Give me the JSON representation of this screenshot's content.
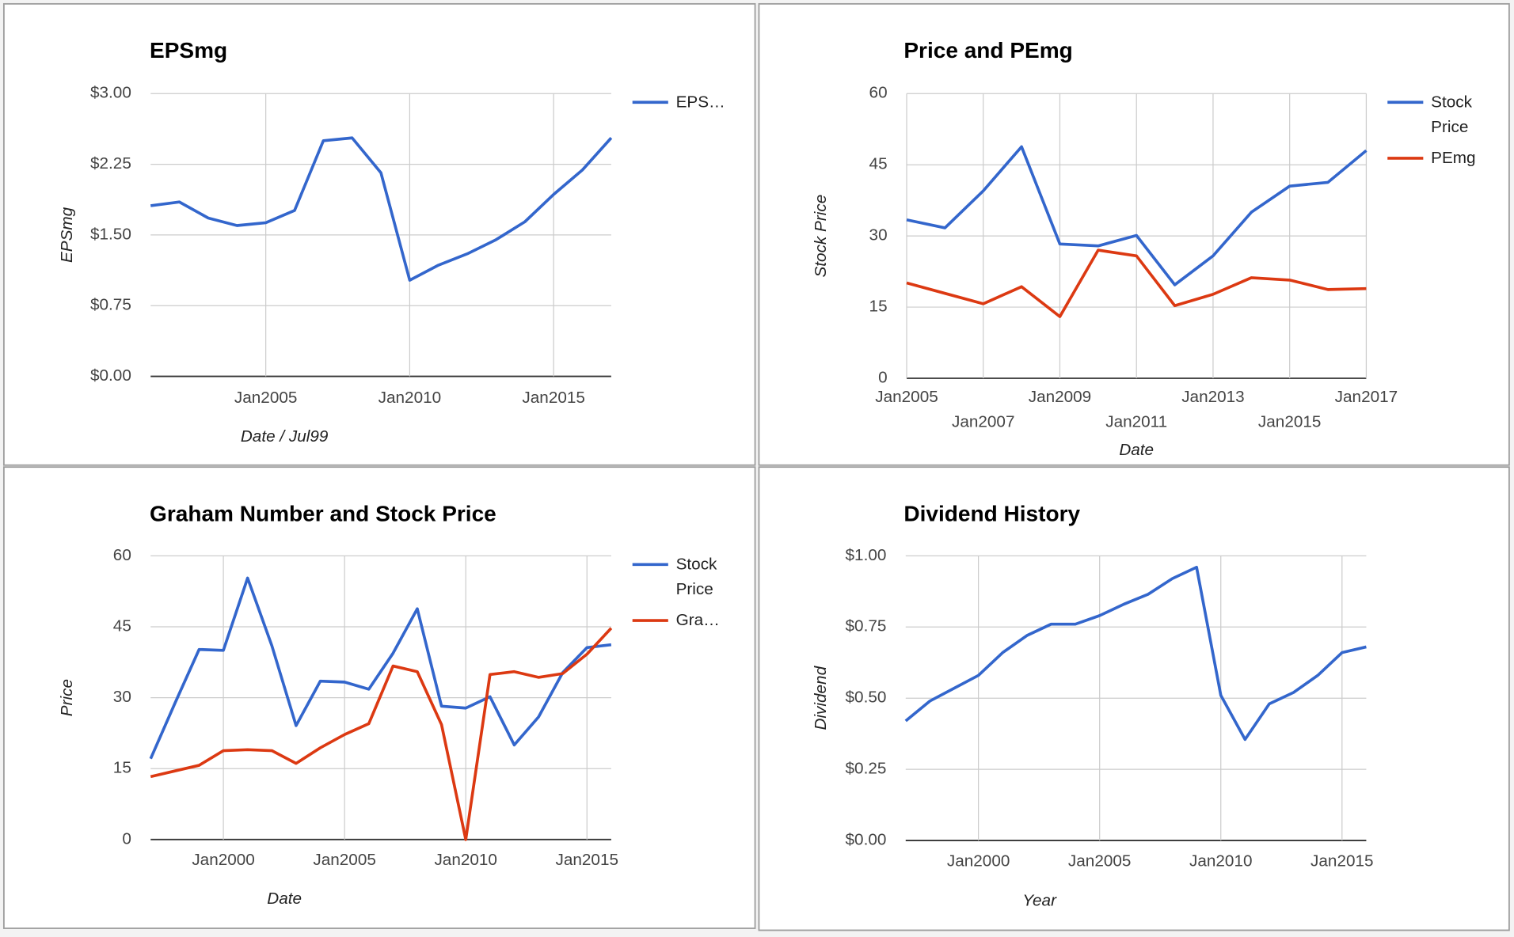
{
  "chart_data": [
    {
      "type": "line",
      "title": "EPSmg",
      "x_label": "Date / Jul99",
      "y_label": "EPSmg",
      "x": [
        2001,
        2002,
        2003,
        2004,
        2005,
        2006,
        2007,
        2008,
        2009,
        2010,
        2011,
        2012,
        2013,
        2014,
        2015,
        2016,
        2017
      ],
      "series": [
        {
          "name": "EPS…",
          "color": "#3366cc",
          "values": [
            1.81,
            1.85,
            1.68,
            1.6,
            1.63,
            1.76,
            2.5,
            2.53,
            2.16,
            1.02,
            1.18,
            1.3,
            1.45,
            1.64,
            1.93,
            2.19,
            2.53
          ]
        }
      ],
      "xlim": [
        2001,
        2017
      ],
      "xticks": [
        {
          "value": 2005,
          "label": "Jan2005"
        },
        {
          "value": 2010,
          "label": "Jan2010"
        },
        {
          "value": 2015,
          "label": "Jan2015"
        }
      ],
      "ylim": [
        0,
        3
      ],
      "yticks": [
        {
          "value": 0,
          "label": "$0.00"
        },
        {
          "value": 0.75,
          "label": "$0.75"
        },
        {
          "value": 1.5,
          "label": "$1.50"
        },
        {
          "value": 2.25,
          "label": "$2.25"
        },
        {
          "value": 3,
          "label": "$3.00"
        }
      ],
      "grid": true,
      "legend": "right"
    },
    {
      "type": "line",
      "title": "Price and PEmg",
      "x_label": "Date",
      "y_label": "Stock Price",
      "x": [
        2005,
        2006,
        2007,
        2008,
        2009,
        2010,
        2011,
        2012,
        2013,
        2014,
        2015,
        2016,
        2017
      ],
      "series": [
        {
          "name": "Stock Price",
          "color": "#3366cc",
          "values": [
            33.4,
            31.7,
            39.5,
            48.8,
            28.3,
            27.9,
            30.1,
            19.7,
            25.8,
            35.0,
            40.5,
            41.3,
            48.0
          ]
        },
        {
          "name": "PEmg",
          "color": "#dc3912",
          "values": [
            20.1,
            17.9,
            15.7,
            19.3,
            13.0,
            27.0,
            25.8,
            15.3,
            17.7,
            21.2,
            20.7,
            18.7,
            18.9
          ]
        }
      ],
      "xlim": [
        2005,
        2017
      ],
      "xticks": [
        {
          "value": 2005,
          "label": "Jan2005"
        },
        {
          "value": 2007,
          "label": "Jan2007"
        },
        {
          "value": 2009,
          "label": "Jan2009"
        },
        {
          "value": 2011,
          "label": "Jan2011"
        },
        {
          "value": 2013,
          "label": "Jan2013"
        },
        {
          "value": 2015,
          "label": "Jan2015"
        },
        {
          "value": 2017,
          "label": "Jan2017"
        }
      ],
      "ylim": [
        0,
        60
      ],
      "yticks": [
        0,
        15,
        30,
        45,
        60
      ],
      "grid": true,
      "legend": "right"
    },
    {
      "type": "line",
      "title": "Graham Number and Stock Price",
      "x_label": "Date",
      "y_label": "Price",
      "x": [
        1997,
        1998,
        1999,
        2000,
        2001,
        2002,
        2003,
        2004,
        2005,
        2006,
        2007,
        2008,
        2009,
        2010,
        2011,
        2012,
        2013,
        2014,
        2015,
        2016
      ],
      "series": [
        {
          "name": "Stock Price",
          "color": "#3366cc",
          "values": [
            17.1,
            28.8,
            40.2,
            40.0,
            55.3,
            41.0,
            24.1,
            33.5,
            33.3,
            31.8,
            39.4,
            48.8,
            28.2,
            27.8,
            30.2,
            20.0,
            25.9,
            35.3,
            40.6,
            41.2
          ]
        },
        {
          "name": "Gra…",
          "color": "#dc3912",
          "values": [
            13.3,
            14.5,
            15.7,
            18.8,
            19.0,
            18.8,
            16.1,
            19.4,
            22.2,
            24.5,
            36.7,
            35.5,
            24.3,
            0,
            34.9,
            35.5,
            34.3,
            35.1,
            39.2,
            44.7
          ]
        }
      ],
      "xlim": [
        1997,
        2016
      ],
      "xticks": [
        {
          "value": 2000,
          "label": "Jan2000"
        },
        {
          "value": 2005,
          "label": "Jan2005"
        },
        {
          "value": 2010,
          "label": "Jan2010"
        },
        {
          "value": 2015,
          "label": "Jan2015"
        }
      ],
      "ylim": [
        0,
        60
      ],
      "yticks": [
        0,
        15,
        30,
        45,
        60
      ],
      "grid": true,
      "legend": "right"
    },
    {
      "type": "line",
      "title": "Dividend History",
      "x_label": "Year",
      "y_label": "Dividend",
      "x": [
        1997,
        1998,
        1999,
        2000,
        2001,
        2002,
        2003,
        2004,
        2005,
        2006,
        2007,
        2008,
        2009,
        2010,
        2011,
        2012,
        2013,
        2014,
        2015,
        2016
      ],
      "series": [
        {
          "color": "#3366cc",
          "values": [
            0.42,
            0.49,
            0.535,
            0.58,
            0.66,
            0.72,
            0.76,
            0.76,
            0.79,
            0.83,
            0.865,
            0.92,
            0.96,
            0.51,
            0.355,
            0.48,
            0.52,
            0.58,
            0.66,
            0.68
          ]
        }
      ],
      "xlim": [
        1997,
        2016
      ],
      "xticks": [
        {
          "value": 2000,
          "label": "Jan2000"
        },
        {
          "value": 2005,
          "label": "Jan2005"
        },
        {
          "value": 2010,
          "label": "Jan2010"
        },
        {
          "value": 2015,
          "label": "Jan2015"
        }
      ],
      "ylim": [
        0,
        1
      ],
      "yticks": [
        {
          "value": 0,
          "label": "$0.00"
        },
        {
          "value": 0.25,
          "label": "$0.25"
        },
        {
          "value": 0.5,
          "label": "$0.50"
        },
        {
          "value": 0.75,
          "label": "$0.75"
        },
        {
          "value": 1,
          "label": "$1.00"
        }
      ],
      "grid": true
    }
  ]
}
